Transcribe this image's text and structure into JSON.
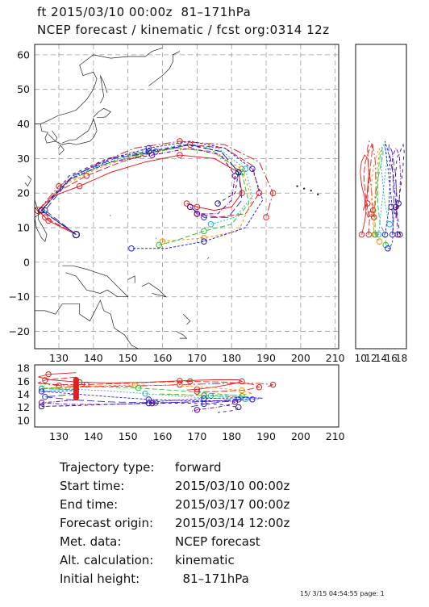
{
  "header": {
    "line1": "ft 2015/03/10 00:00z  81–171hPa",
    "line2": "NCEP forecast / kinematic / fcst org:0314 12z"
  },
  "info": [
    {
      "label": "Trajectory type:",
      "value": "forward"
    },
    {
      "label": "Start time:",
      "value": "2015/03/10 00:00z"
    },
    {
      "label": "End time:",
      "value": "2015/03/17 00:00z"
    },
    {
      "label": "Forecast origin:",
      "value": "2015/03/14 12:00z"
    },
    {
      "label": "Met. data:",
      "value": "NCEP forecast"
    },
    {
      "label": "Alt. calculation:",
      "value": "kinematic"
    },
    {
      "label": "Initial height:",
      "value": "  81–171hPa"
    }
  ],
  "footer": "15/ 3/15 04:54:55 page: 1",
  "chart_data": [
    {
      "type": "line",
      "xticks": [
        "130",
        "140",
        "150",
        "160",
        "170",
        "180",
        "190",
        "200",
        "210"
      ],
      "yticks": [
        "60",
        "50",
        "40",
        "30",
        "20",
        "10",
        "0",
        "−10",
        "−20"
      ],
      "xlim": [
        123,
        211
      ],
      "ylim": [
        -25,
        63
      ],
      "grid": true,
      "series": [
        {
          "color": "#e02020",
          "lon": [
            135,
            127,
            124,
            128,
            136,
            145,
            155,
            165,
            175,
            182,
            183,
            180,
            175,
            170,
            167
          ],
          "lat": [
            8,
            12,
            15,
            19,
            22,
            26,
            29,
            31,
            30,
            26,
            20,
            16,
            15,
            16,
            17
          ]
        },
        {
          "color": "#e02020",
          "lon": [
            135,
            126,
            124,
            129,
            138,
            148,
            158,
            168,
            178,
            186,
            188,
            184,
            176,
            170
          ],
          "lat": [
            8,
            13,
            15,
            20,
            25,
            29,
            32,
            34,
            33,
            28,
            20,
            14,
            13,
            14
          ]
        },
        {
          "color": "#e02020",
          "lon": [
            124,
            130,
            140,
            152,
            165,
            178,
            188,
            192,
            190
          ],
          "lat": [
            15,
            22,
            28,
            33,
            35,
            34,
            29,
            20,
            13
          ]
        },
        {
          "color": "#ff8a00",
          "lon": [
            135,
            125,
            131,
            141,
            152,
            163,
            174,
            183,
            186,
            182,
            172,
            160
          ],
          "lat": [
            8,
            15,
            22,
            27,
            31,
            33,
            32,
            27,
            18,
            9,
            7,
            6
          ]
        },
        {
          "color": "#30c030",
          "lon": [
            135,
            125,
            132,
            142,
            153,
            164,
            175,
            183,
            185,
            180,
            172,
            163,
            159
          ],
          "lat": [
            8,
            15,
            23,
            28,
            31,
            33,
            32,
            26,
            17,
            11,
            9,
            6,
            5
          ]
        },
        {
          "color": "#20b0d0",
          "lon": [
            135,
            125,
            133,
            144,
            155,
            166,
            176,
            184,
            186,
            181,
            174
          ],
          "lat": [
            8,
            15,
            24,
            29,
            32,
            34,
            33,
            27,
            19,
            13,
            11
          ]
        },
        {
          "color": "#2020e0",
          "lon": [
            135,
            125,
            134,
            145,
            156,
            168,
            178,
            186,
            189,
            184,
            172,
            161,
            151
          ],
          "lat": [
            8,
            15,
            25,
            30,
            33,
            35,
            33,
            27,
            18,
            10,
            6,
            4,
            4
          ]
        },
        {
          "color": "#3030c0",
          "lon": [
            135,
            126,
            134,
            146,
            158,
            168,
            177,
            182,
            183,
            179,
            172,
            168
          ],
          "lat": [
            8,
            15,
            25,
            30,
            32,
            34,
            32,
            26,
            18,
            13,
            13,
            16
          ]
        },
        {
          "color": "#7000a0",
          "lon": [
            135,
            125,
            133,
            145,
            157,
            168,
            177,
            181,
            180,
            176,
            170,
            168
          ],
          "lat": [
            8,
            15,
            24,
            29,
            31,
            33,
            31,
            25,
            18,
            14,
            14,
            16
          ]
        },
        {
          "color": "#1c1c80",
          "lon": [
            135,
            125,
            133,
            144,
            156,
            167,
            177,
            182,
            181,
            176
          ],
          "lat": [
            8,
            15,
            25,
            30,
            32,
            34,
            32,
            26,
            20,
            17
          ]
        }
      ]
    },
    {
      "type": "line",
      "xticks": [
        "10",
        "12",
        "14",
        "16",
        "18"
      ],
      "ylim": [
        -25,
        63
      ],
      "xlim": [
        9,
        19
      ],
      "grid": false
    },
    {
      "type": "line",
      "xticks": [
        "130",
        "140",
        "150",
        "160",
        "170",
        "180",
        "190",
        "200",
        "210"
      ],
      "yticks": [
        "18",
        "16",
        "14",
        "12",
        "10"
      ],
      "xlim": [
        123,
        211
      ],
      "ylim": [
        9,
        18.5
      ],
      "grid": false
    }
  ]
}
